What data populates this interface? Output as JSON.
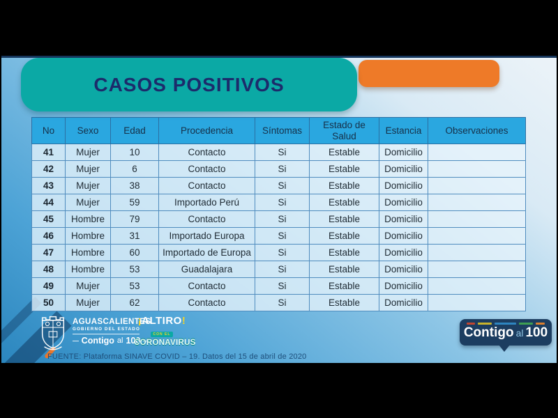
{
  "title": "CASOS POSITIVOS",
  "colors": {
    "teal_banner": "#0BA9A5",
    "orange_tab": "#EE7A28",
    "header_blue": "#2AA7E0",
    "title_navy": "#1C2B6B",
    "badge_navy": "#1C3D60",
    "background_blue": "#4DA3D6"
  },
  "table": {
    "columns": [
      "No",
      "Sexo",
      "Edad",
      "Procedencia",
      "Síntomas",
      "Estado de Salud",
      "Estancia",
      "Observaciones"
    ],
    "rows": [
      [
        "41",
        "Mujer",
        "10",
        "Contacto",
        "Si",
        "Estable",
        "Domicilio",
        ""
      ],
      [
        "42",
        "Mujer",
        "6",
        "Contacto",
        "Si",
        "Estable",
        "Domicilio",
        ""
      ],
      [
        "43",
        "Mujer",
        "38",
        "Contacto",
        "Si",
        "Estable",
        "Domicilio",
        ""
      ],
      [
        "44",
        "Mujer",
        "59",
        "Importado Perú",
        "Si",
        "Estable",
        "Domicilio",
        ""
      ],
      [
        "45",
        "Hombre",
        "79",
        "Contacto",
        "Si",
        "Estable",
        "Domicilio",
        ""
      ],
      [
        "46",
        "Hombre",
        "31",
        "Importado Europa",
        "Si",
        "Estable",
        "Domicilio",
        ""
      ],
      [
        "47",
        "Hombre",
        "60",
        "Importado de Europa",
        "Si",
        "Estable",
        "Domicilio",
        ""
      ],
      [
        "48",
        "Hombre",
        "53",
        "Guadalajara",
        "Si",
        "Estable",
        "Domicilio",
        ""
      ],
      [
        "49",
        "Mujer",
        "53",
        "Contacto",
        "Si",
        "Estable",
        "Domicilio",
        ""
      ],
      [
        "50",
        "Mujer",
        "62",
        "Contacto",
        "Si",
        "Estable",
        "Domicilio",
        ""
      ]
    ]
  },
  "footer": {
    "gov": {
      "line1": "AGUASCALIENTES",
      "line2": "GOBIERNO DEL ESTADO",
      "contigo": "Contigo",
      "al": "al",
      "hundred": "100"
    },
    "altiro": {
      "top": "ALTIRO",
      "mid": "CON EL",
      "bottom": "CORONAVIRUS"
    },
    "badge": {
      "contigo": "Contigo",
      "al": "al",
      "hundred": "100"
    },
    "source": "FUENTE: Plataforma SINAVE COVID – 19. Datos del 15 de abril de 2020"
  }
}
